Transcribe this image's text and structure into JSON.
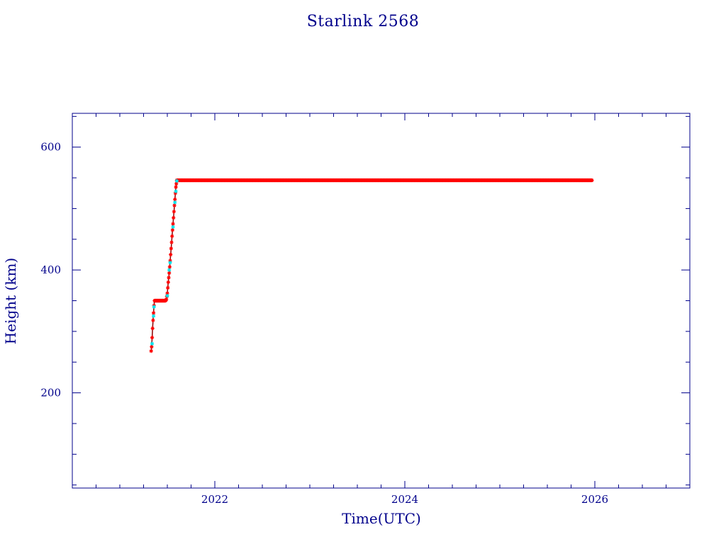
{
  "chart_data": {
    "type": "scatter",
    "title": "Starlink 2568",
    "xlabel": "Time(UTC)",
    "ylabel": "Height (km)",
    "xlim": [
      2020.5,
      2027.0
    ],
    "ylim": [
      45,
      655
    ],
    "x_ticks": [
      2022,
      2024,
      2026
    ],
    "x_tick_labels": [
      "2022",
      "2024",
      "2026"
    ],
    "y_ticks": [
      200,
      400,
      600
    ],
    "y_tick_labels": [
      "200",
      "400",
      "600"
    ],
    "x_minor_step": 0.25,
    "y_minor_step": 50,
    "grid": false,
    "colors": {
      "axis": "#00008b",
      "text": "#00008b",
      "apogee": "#ff0000",
      "perigee": "#00e5ee"
    },
    "series": [
      {
        "color": "#ff0000",
        "points": [
          [
            2021.33,
            268
          ],
          [
            2021.335,
            275
          ],
          [
            2021.34,
            290
          ],
          [
            2021.345,
            305
          ],
          [
            2021.35,
            318
          ],
          [
            2021.355,
            330
          ],
          [
            2021.36,
            342
          ],
          [
            2021.365,
            350
          ],
          [
            2021.38,
            350
          ],
          [
            2021.4,
            350
          ],
          [
            2021.42,
            350
          ],
          [
            2021.44,
            350
          ],
          [
            2021.46,
            350
          ],
          [
            2021.48,
            350
          ],
          [
            2021.49,
            352
          ],
          [
            2021.5,
            362
          ],
          [
            2021.51,
            380
          ],
          [
            2021.52,
            395
          ],
          [
            2021.53,
            415
          ],
          [
            2021.54,
            435
          ],
          [
            2021.55,
            455
          ],
          [
            2021.56,
            475
          ],
          [
            2021.57,
            495
          ],
          [
            2021.58,
            515
          ],
          [
            2021.59,
            535
          ],
          [
            2021.6,
            546
          ],
          [
            2021.7,
            546
          ],
          [
            2022.0,
            546
          ],
          [
            2022.5,
            546
          ],
          [
            2023.0,
            546
          ],
          [
            2023.5,
            546
          ],
          [
            2024.0,
            546
          ],
          [
            2024.5,
            546
          ],
          [
            2025.0,
            546
          ],
          [
            2025.5,
            546
          ],
          [
            2025.97,
            546
          ]
        ]
      },
      {
        "color": "#00e5ee",
        "points": [
          [
            2021.34,
            280
          ],
          [
            2021.355,
            325
          ],
          [
            2021.36,
            340
          ],
          [
            2021.5,
            358
          ],
          [
            2021.52,
            400
          ],
          [
            2021.53,
            412
          ],
          [
            2021.56,
            470
          ],
          [
            2021.58,
            510
          ],
          [
            2021.59,
            528
          ],
          [
            2021.6,
            545
          ]
        ]
      }
    ]
  }
}
